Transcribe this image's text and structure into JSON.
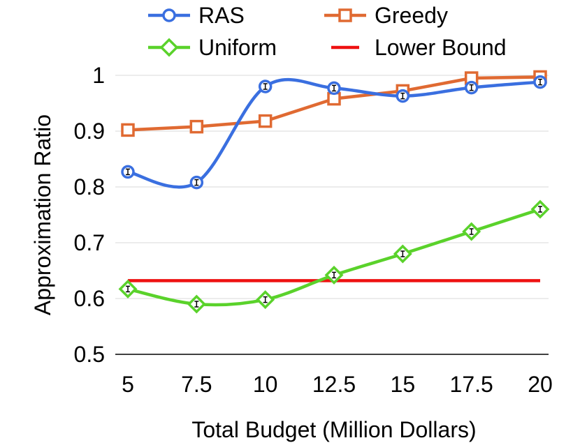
{
  "chart_data": {
    "type": "line",
    "title": "",
    "xlabel": "Total Budget (Million Dollars)",
    "ylabel": "Approximation Ratio",
    "x": [
      5,
      7.5,
      10,
      12.5,
      15,
      17.5,
      20
    ],
    "x_tick_labels": [
      "5",
      "7.5",
      "10",
      "12.5",
      "15",
      "17.5",
      "20"
    ],
    "y_ticks": [
      0.5,
      0.6,
      0.7,
      0.8,
      0.9,
      1
    ],
    "y_tick_labels": [
      "0.5",
      "0.6",
      "0.7",
      "0.8",
      "0.9",
      "1"
    ],
    "ylim": [
      0.5,
      1.0
    ],
    "xlim": [
      5,
      20
    ],
    "grid": "horizontal",
    "legend_position": "top",
    "series": [
      {
        "name": "RAS",
        "marker": "circle",
        "color": "#3a6fe0",
        "smooth": true,
        "values": [
          0.827,
          0.808,
          0.98,
          0.977,
          0.963,
          0.978,
          0.988
        ]
      },
      {
        "name": "Greedy",
        "marker": "square",
        "color": "#e06a32",
        "smooth": false,
        "values": [
          0.902,
          0.908,
          0.918,
          0.958,
          0.972,
          0.995,
          0.997
        ]
      },
      {
        "name": "Uniform",
        "marker": "diamond",
        "color": "#5ad22b",
        "smooth": true,
        "values": [
          0.617,
          0.59,
          0.598,
          0.642,
          0.68,
          0.72,
          0.76
        ]
      },
      {
        "name": "Lower Bound",
        "marker": "none",
        "color": "#ee1111",
        "constant": 0.632
      }
    ]
  }
}
